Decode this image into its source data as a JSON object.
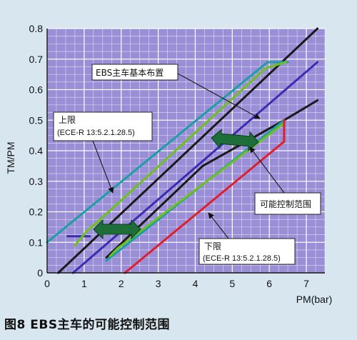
{
  "caption": "图8 EBS主车的可能控制范围",
  "chart_data": {
    "type": "line",
    "ylabel": "TM/PM",
    "xlabel": "PM(bar)",
    "xlim": [
      0,
      7.5
    ],
    "ylim": [
      0,
      0.8
    ],
    "x_ticks": [
      "0",
      "1",
      "2",
      "3",
      "4",
      "5",
      "6",
      "7"
    ],
    "y_ticks": [
      "0",
      "0.1",
      "0.2",
      "0.3",
      "0.4",
      "0.5",
      "0.6",
      "0.7",
      "0.8"
    ],
    "grid": true,
    "series": [
      {
        "name": "",
        "color": "#1a1a1a",
        "points": [
          [
            0.3,
            0.0
          ],
          [
            7.3,
            0.8
          ]
        ]
      },
      {
        "name": "",
        "color": "#1a1a1a",
        "points": [
          [
            1.6,
            0.05
          ],
          [
            4.2,
            0.35
          ],
          [
            6.4,
            0.5
          ],
          [
            7.3,
            0.565
          ]
        ]
      },
      {
        "name": "",
        "color": "#3a2db0",
        "points": [
          [
            0.7,
            0.0
          ],
          [
            7.3,
            0.69
          ]
        ]
      },
      {
        "name": "",
        "color": "#3a2db0",
        "points": [
          [
            0.55,
            0.12
          ],
          [
            1.15,
            0.12
          ]
        ]
      },
      {
        "name": "",
        "color": "#1a9fa3",
        "points": [
          [
            0.0,
            0.1
          ],
          [
            5.95,
            0.69
          ],
          [
            6.5,
            0.69
          ]
        ]
      },
      {
        "name": "",
        "color": "#6cc21a",
        "points": [
          [
            0.75,
            0.09
          ],
          [
            1.1,
            0.14
          ],
          [
            1.3,
            0.16
          ],
          [
            5.9,
            0.67
          ],
          [
            6.45,
            0.69
          ]
        ]
      },
      {
        "name": "",
        "color": "#1a9fa3",
        "points": [
          [
            1.6,
            0.04
          ],
          [
            6.4,
            0.5
          ]
        ]
      },
      {
        "name": "",
        "color": "#6cc21a",
        "points": [
          [
            1.7,
            0.055
          ],
          [
            1.9,
            0.08
          ],
          [
            6.4,
            0.49
          ]
        ]
      },
      {
        "name": "",
        "color": "#e01e2c",
        "points": [
          [
            2.1,
            0.0
          ],
          [
            6.4,
            0.43
          ],
          [
            6.4,
            0.5
          ]
        ]
      }
    ],
    "annotations": [
      {
        "id": "basic",
        "text": "EBS主车基本布置"
      },
      {
        "id": "upper",
        "text": "上限",
        "sub": "(ECE-R 13:5.2.1.28.5)"
      },
      {
        "id": "range",
        "text": "可能控制范围"
      },
      {
        "id": "lower",
        "text": "下限",
        "sub": "(ECE-R 13:5.2.1.28.5)"
      }
    ],
    "colors": {
      "grid_bg": "#9a8ed7",
      "grid_line": "#ffffff",
      "arrow_fill": "#1e6e3a"
    }
  }
}
